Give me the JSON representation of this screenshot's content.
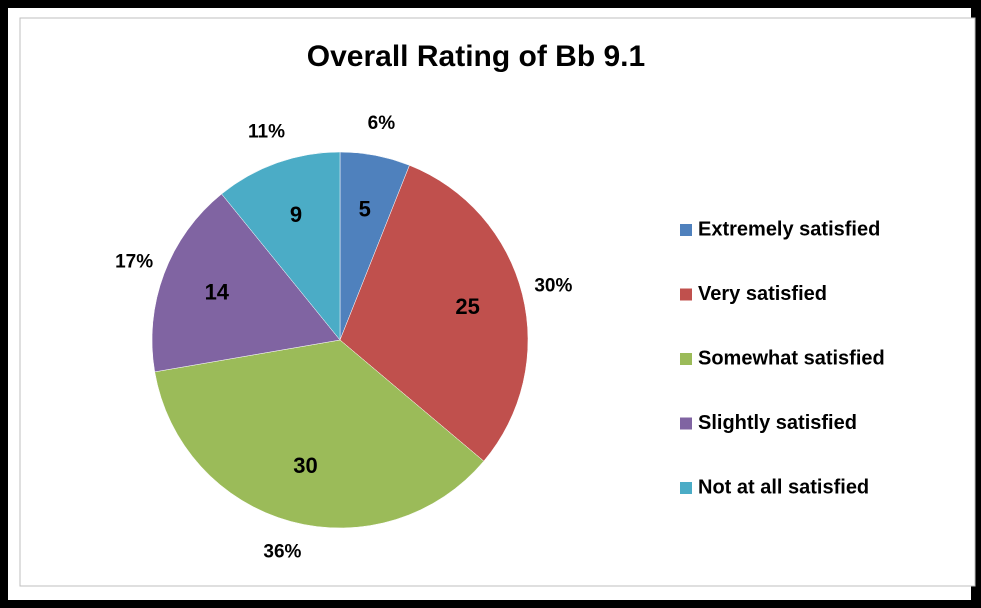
{
  "chart_data": {
    "type": "pie",
    "title": "Overall Rating of Bb 9.1",
    "categories": [
      "Extremely satisfied",
      "Very satisfied",
      "Somewhat satisfied",
      "Slightly satisfied",
      "Not at all satisfied"
    ],
    "values": [
      5,
      25,
      30,
      14,
      9
    ],
    "percent_labels": [
      "6%",
      "30%",
      "36%",
      "17%",
      "11%"
    ],
    "colors": [
      "#4f81bd",
      "#c0504d",
      "#9bbb59",
      "#8064a2",
      "#4bacc6"
    ],
    "legend": "right"
  }
}
